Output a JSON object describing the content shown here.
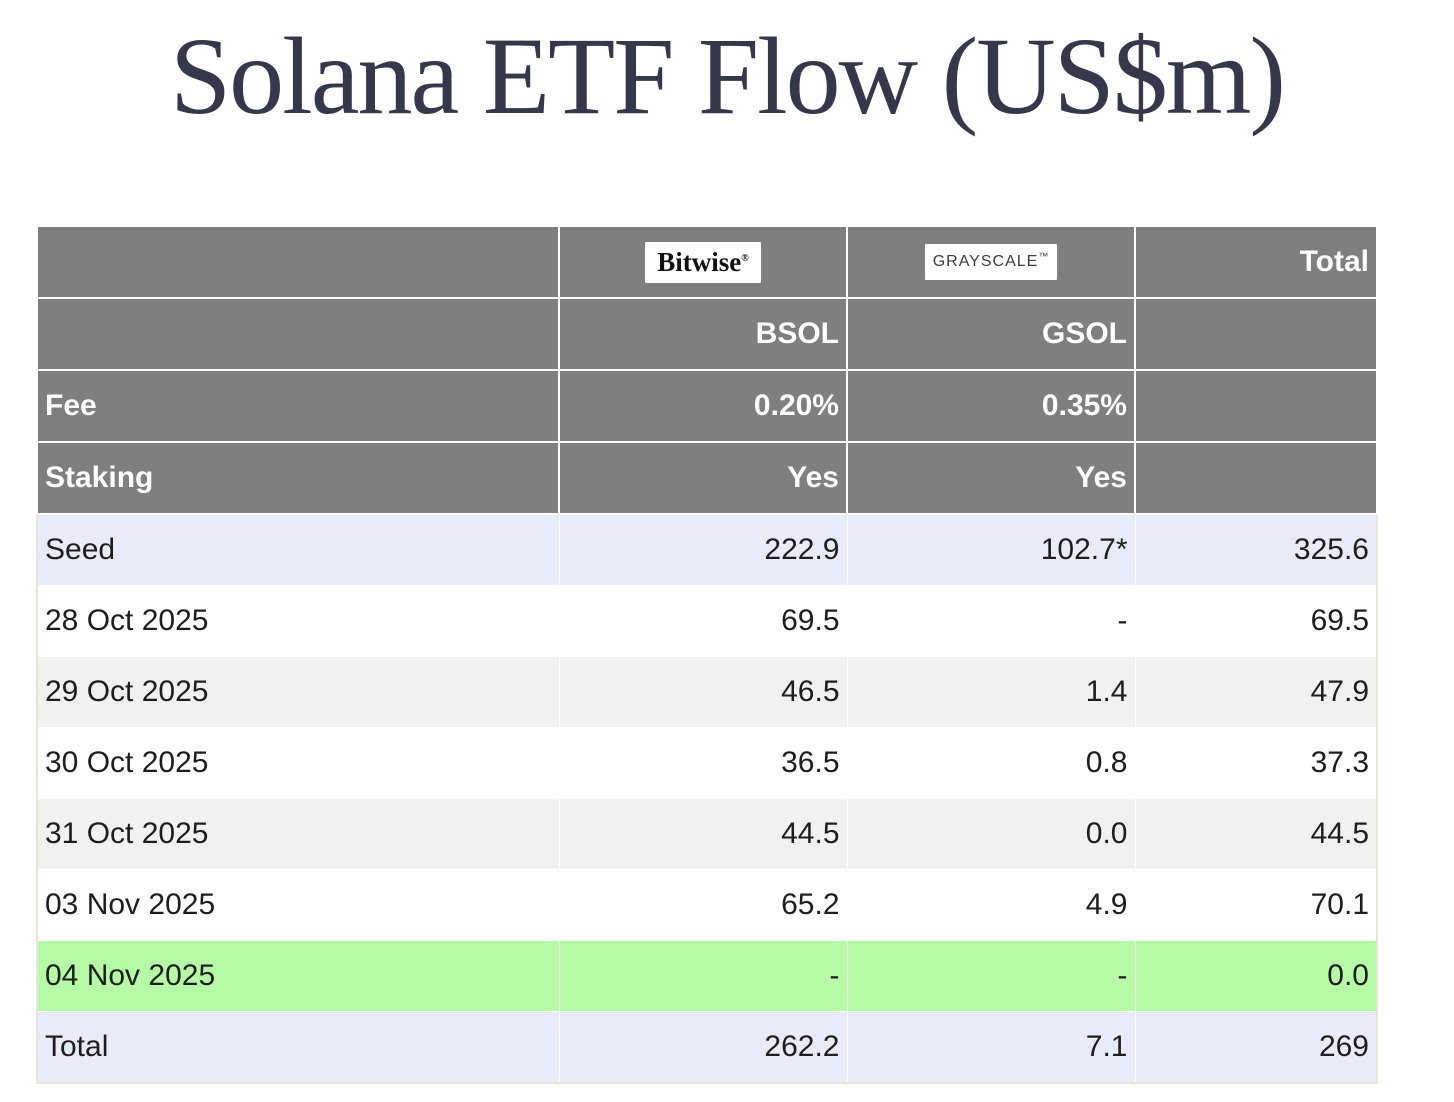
{
  "title": "Solana ETF Flow (US$m)",
  "table": {
    "total_header": "Total",
    "providers": [
      {
        "logo": "Bitwise",
        "logo_mark": "®",
        "ticker": "BSOL",
        "fee": "0.20%",
        "staking": "Yes"
      },
      {
        "logo": "GRAYSCALE",
        "logo_mark": "™",
        "ticker": "GSOL",
        "fee": "0.35%",
        "staking": "Yes"
      }
    ],
    "row_labels": {
      "fee": "Fee",
      "staking": "Staking"
    },
    "rows": [
      {
        "label": "Seed",
        "bsol": "222.9",
        "gsol": "102.7*",
        "total": "325.6",
        "highlight": "lavender"
      },
      {
        "label": "28 Oct 2025",
        "bsol": "69.5",
        "gsol": "-",
        "total": "69.5",
        "highlight": "white"
      },
      {
        "label": "29 Oct 2025",
        "bsol": "46.5",
        "gsol": "1.4",
        "total": "47.9",
        "highlight": "gray"
      },
      {
        "label": "30 Oct 2025",
        "bsol": "36.5",
        "gsol": "0.8",
        "total": "37.3",
        "highlight": "white"
      },
      {
        "label": "31 Oct 2025",
        "bsol": "44.5",
        "gsol": "0.0",
        "total": "44.5",
        "highlight": "gray"
      },
      {
        "label": "03 Nov 2025",
        "bsol": "65.2",
        "gsol": "4.9",
        "total": "70.1",
        "highlight": "white"
      },
      {
        "label": "04 Nov 2025",
        "bsol": "-",
        "gsol": "-",
        "total": "0.0",
        "highlight": "green"
      },
      {
        "label": "Total",
        "bsol": "262.2",
        "gsol": "7.1",
        "total": "269",
        "highlight": "lavender"
      }
    ]
  },
  "colors": {
    "header_gray": "#7f7f7f",
    "row_lavender": "#e8ecf8",
    "row_gray": "#f1f1f0",
    "row_green": "#b5fba5",
    "title_navy": "#35374a",
    "table_border": "#e7e4d8"
  }
}
